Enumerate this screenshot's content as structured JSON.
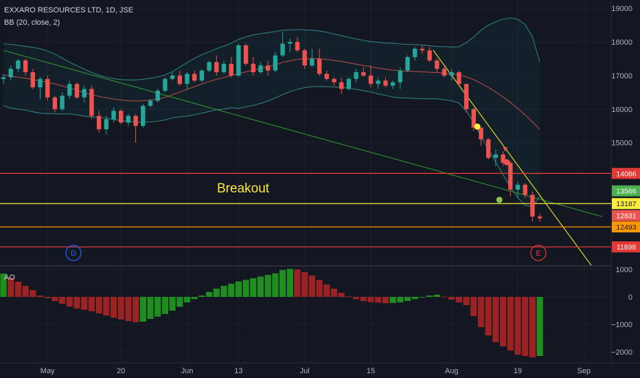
{
  "legend": {
    "title": "EXXARO RESOURCES LTD, 1D, JSE",
    "bb": "BB (20, close, 2)",
    "ao": "AO"
  },
  "chart_data": {
    "type": "candlestick",
    "title": "EXXARO RESOURCES LTD, 1D, JSE",
    "price_axis": {
      "ticks": [
        15000,
        16000,
        17000,
        18000,
        19000
      ],
      "range": [
        11350,
        19250
      ]
    },
    "ao_axis": {
      "ticks": [
        -2000,
        -1000,
        0,
        1000
      ],
      "range": [
        -2400,
        1100
      ]
    },
    "x_labels": [
      {
        "i": 6,
        "label": "May"
      },
      {
        "i": 16,
        "label": "20"
      },
      {
        "i": 25,
        "label": "Jun"
      },
      {
        "i": 32,
        "label": "13"
      },
      {
        "i": 41,
        "label": "Jul"
      },
      {
        "i": 50,
        "label": "15"
      },
      {
        "i": 61,
        "label": "Aug"
      },
      {
        "i": 70,
        "label": "19"
      },
      {
        "i": 79,
        "label": "Sep"
      }
    ],
    "last_index": 73,
    "candles": [
      [
        16900,
        17050,
        16750,
        16950
      ],
      [
        16950,
        17300,
        16850,
        17200
      ],
      [
        17200,
        17500,
        17100,
        17450
      ],
      [
        17450,
        17500,
        17000,
        17100
      ],
      [
        17100,
        17200,
        16600,
        16650
      ],
      [
        16650,
        16950,
        16300,
        16900
      ],
      [
        16900,
        17000,
        16250,
        16350
      ],
      [
        16350,
        16400,
        15900,
        16000
      ],
      [
        16000,
        16500,
        15950,
        16400
      ],
      [
        16400,
        16850,
        16300,
        16750
      ],
      [
        16750,
        16800,
        16300,
        16350
      ],
      [
        16350,
        16700,
        16200,
        16600
      ],
      [
        16600,
        16700,
        15700,
        15800
      ],
      [
        15800,
        15950,
        15300,
        15400
      ],
      [
        15400,
        15800,
        15250,
        15700
      ],
      [
        15700,
        16050,
        15600,
        15950
      ],
      [
        15950,
        16000,
        15550,
        15600
      ],
      [
        15600,
        15850,
        15500,
        15800
      ],
      [
        15800,
        15850,
        15000,
        15500
      ],
      [
        15500,
        16150,
        15450,
        16100
      ],
      [
        16100,
        16300,
        16050,
        16250
      ],
      [
        16250,
        16600,
        16200,
        16550
      ],
      [
        16550,
        16950,
        16500,
        16900
      ],
      [
        16900,
        17100,
        16850,
        17000
      ],
      [
        17000,
        17150,
        16700,
        16750
      ],
      [
        16750,
        17100,
        16600,
        17050
      ],
      [
        17050,
        17150,
        16800,
        16850
      ],
      [
        16850,
        17200,
        16800,
        17150
      ],
      [
        17150,
        17450,
        17100,
        17400
      ],
      [
        17400,
        17600,
        17000,
        17100
      ],
      [
        17100,
        17450,
        17050,
        17350
      ],
      [
        17350,
        17550,
        16950,
        17000
      ],
      [
        17000,
        17950,
        16950,
        17900
      ],
      [
        17900,
        17950,
        17300,
        17350
      ],
      [
        17350,
        17550,
        17000,
        17100
      ],
      [
        17100,
        17400,
        17050,
        17300
      ],
      [
        17300,
        17450,
        17000,
        17150
      ],
      [
        17150,
        17700,
        17100,
        17600
      ],
      [
        17600,
        18300,
        17550,
        17950
      ],
      [
        17950,
        18100,
        17700,
        18000
      ],
      [
        18000,
        18150,
        17700,
        17750
      ],
      [
        17750,
        17800,
        17200,
        17300
      ],
      [
        17300,
        17800,
        17250,
        17500
      ],
      [
        17500,
        17800,
        17000,
        17050
      ],
      [
        17050,
        17150,
        16850,
        16900
      ],
      [
        16900,
        16950,
        16700,
        16800
      ],
      [
        16800,
        16950,
        16450,
        16600
      ],
      [
        16600,
        16950,
        16550,
        16900
      ],
      [
        16900,
        17200,
        16800,
        17100
      ],
      [
        17100,
        17250,
        16950,
        17000
      ],
      [
        17000,
        17300,
        16650,
        16750
      ],
      [
        16750,
        16950,
        16600,
        16850
      ],
      [
        16850,
        16950,
        16650,
        16700
      ],
      [
        16700,
        16850,
        16600,
        16800
      ],
      [
        16800,
        17250,
        16600,
        17150
      ],
      [
        17150,
        17600,
        17100,
        17550
      ],
      [
        17550,
        17850,
        17450,
        17800
      ],
      [
        17800,
        17900,
        17650,
        17750
      ],
      [
        17750,
        17850,
        17400,
        17450
      ],
      [
        17450,
        17500,
        17100,
        17200
      ],
      [
        17200,
        17300,
        16950,
        17000
      ],
      [
        17000,
        17200,
        16850,
        17100
      ],
      [
        17100,
        17150,
        16700,
        16750
      ],
      [
        16750,
        16750,
        15900,
        16000
      ],
      [
        16000,
        16050,
        15350,
        15450
      ],
      [
        15450,
        15450,
        14900,
        15100
      ],
      [
        15100,
        15150,
        14500,
        14550
      ],
      [
        14550,
        14800,
        14300,
        14650
      ],
      [
        14650,
        14750,
        14300,
        14400
      ],
      [
        14400,
        14450,
        13400,
        13600
      ],
      [
        13600,
        13850,
        13350,
        13750
      ],
      [
        13750,
        13800,
        13350,
        13450
      ],
      [
        13450,
        13550,
        12650,
        12800
      ],
      [
        12800,
        12900,
        12650,
        12750
      ]
    ],
    "bollinger": {
      "upper": [
        17940,
        17930,
        17900,
        17870,
        17840,
        17800,
        17730,
        17640,
        17520,
        17400,
        17290,
        17190,
        17090,
        17010,
        16950,
        16910,
        16880,
        16870,
        16870,
        16890,
        16920,
        16960,
        17020,
        17120,
        17250,
        17390,
        17510,
        17620,
        17710,
        17800,
        17880,
        17960,
        18080,
        18150,
        18210,
        18250,
        18280,
        18310,
        18350,
        18360,
        18370,
        18360,
        18350,
        18330,
        18290,
        18240,
        18190,
        18140,
        18090,
        18050,
        18010,
        17990,
        17970,
        17960,
        17940,
        17930,
        17920,
        17910,
        17890,
        17870,
        17860,
        17850,
        17860,
        17980,
        18150,
        18350,
        18500,
        18600,
        18680,
        18720,
        18680,
        18520,
        18150,
        17400
      ],
      "middle": [
        17020,
        16980,
        16950,
        16920,
        16880,
        16840,
        16800,
        16750,
        16690,
        16630,
        16560,
        16490,
        16430,
        16380,
        16340,
        16300,
        16270,
        16250,
        16240,
        16250,
        16270,
        16300,
        16350,
        16430,
        16510,
        16590,
        16670,
        16750,
        16820,
        16890,
        16940,
        17000,
        17050,
        17110,
        17160,
        17210,
        17260,
        17320,
        17390,
        17440,
        17480,
        17500,
        17510,
        17500,
        17480,
        17450,
        17420,
        17380,
        17340,
        17300,
        17260,
        17220,
        17190,
        17160,
        17140,
        17130,
        17120,
        17110,
        17100,
        17090,
        17070,
        17050,
        17020,
        16960,
        16880,
        16770,
        16650,
        16510,
        16360,
        16200,
        16020,
        15830,
        15620,
        15400
      ],
      "lower": [
        16100,
        16030,
        16000,
        15970,
        15920,
        15880,
        15870,
        15860,
        15860,
        15860,
        15830,
        15790,
        15770,
        15750,
        15730,
        15690,
        15660,
        15630,
        15610,
        15610,
        15620,
        15640,
        15680,
        15740,
        15770,
        15790,
        15830,
        15880,
        15930,
        15980,
        16000,
        16040,
        16020,
        16070,
        16110,
        16170,
        16240,
        16330,
        16430,
        16520,
        16590,
        16640,
        16670,
        16670,
        16670,
        16660,
        16650,
        16620,
        16590,
        16550,
        16510,
        16450,
        16410,
        16360,
        16340,
        16330,
        16320,
        16310,
        16310,
        16310,
        16280,
        16250,
        16180,
        15940,
        15610,
        15190,
        14800,
        14420,
        14040,
        13680,
        13360,
        13140,
        13090,
        13400
      ]
    },
    "ao": [
      850,
      700,
      550,
      400,
      250,
      50,
      -50,
      -150,
      -250,
      -350,
      -420,
      -470,
      -520,
      -600,
      -680,
      -760,
      -820,
      -880,
      -920,
      -900,
      -800,
      -720,
      -620,
      -500,
      -360,
      -200,
      -80,
      50,
      180,
      300,
      400,
      480,
      560,
      620,
      680,
      740,
      800,
      860,
      980,
      1020,
      1000,
      900,
      780,
      620,
      450,
      300,
      150,
      20,
      -80,
      -150,
      -190,
      -210,
      -230,
      -220,
      -200,
      -150,
      -80,
      0,
      50,
      80,
      10,
      -100,
      -200,
      -300,
      -700,
      -1100,
      -1400,
      -1650,
      -1800,
      -1950,
      -2100,
      -2150,
      -2200,
      -2150
    ],
    "horizontal_levels": [
      {
        "value": 14086,
        "color": "#e53935",
        "label": "14086"
      },
      {
        "value": 13187,
        "color": "#ffeb3b",
        "label": "13187"
      },
      {
        "value": 12493,
        "color": "#ff9800",
        "label": "12493"
      },
      {
        "value": 11898,
        "color": "#e53935",
        "label": "11898"
      }
    ],
    "price_tags": [
      {
        "value": 13566,
        "color": "#4caf50",
        "label": "13566"
      },
      {
        "value": 12831,
        "color": "#ef5350",
        "label": "12831"
      }
    ],
    "annotations": {
      "breakout": "Breakout",
      "label_d": "D",
      "label_e": "E"
    },
    "colors": {
      "up": "#26a69a",
      "down": "#ef5350",
      "bb_band": "#2f7f7f",
      "bb_mid": "#b34a4a",
      "ao_up": "#1e8f1e",
      "ao_down": "#9b2323"
    }
  }
}
